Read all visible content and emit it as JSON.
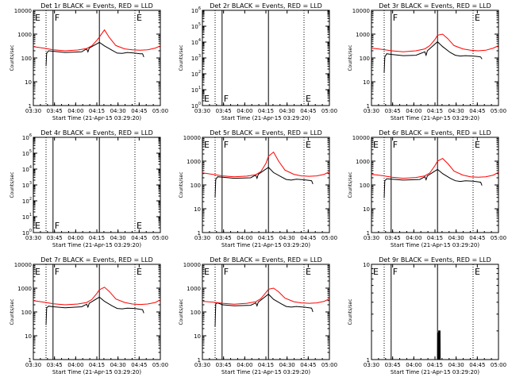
{
  "figure": {
    "xlabel": "Start Time (21-Apr-15 03:29:20)",
    "ylabel": "Counts/sec",
    "x_ticks": [
      "03:30",
      "03:45",
      "04:00",
      "04:15",
      "04:30",
      "04:45",
      "05:00"
    ],
    "colors": {
      "events": "#000000",
      "lld": "#ff0000",
      "axes": "#000000",
      "background": "#ffffff"
    }
  },
  "chart_data": [
    {
      "type": "line",
      "title": "Det 1r BLACK = Events, RED = LLD",
      "yscale": "log",
      "ylim": [
        1,
        10000
      ],
      "y_ticks": [
        "1",
        "10",
        "100",
        "1000",
        "10000"
      ],
      "flags": [
        {
          "label": "E",
          "x": 0.0
        },
        {
          "label": "F",
          "x": 0.155
        },
        {
          "label": "E",
          "x": 0.8
        }
      ],
      "solid_vlines": [
        0.155,
        0.52
      ],
      "dotted_vlines": [
        0.1,
        0.8
      ],
      "series": [
        {
          "color": "#000000",
          "x": [
            0.1,
            0.105,
            0.12,
            0.16,
            0.25,
            0.38,
            0.42,
            0.43,
            0.44,
            0.52,
            0.56,
            0.62,
            0.66,
            0.7,
            0.74,
            0.8,
            0.84,
            0.86,
            0.87
          ],
          "y": [
            45,
            160,
            200,
            190,
            170,
            180,
            240,
            180,
            260,
            450,
            320,
            210,
            160,
            155,
            170,
            160,
            150,
            150,
            110
          ]
        },
        {
          "color": "#ff0000",
          "x": [
            0.0,
            0.08,
            0.16,
            0.25,
            0.35,
            0.42,
            0.46,
            0.5,
            0.52,
            0.56,
            0.6,
            0.65,
            0.72,
            0.78,
            0.84,
            0.9,
            0.96,
            1.0
          ],
          "y": [
            300,
            260,
            220,
            200,
            215,
            250,
            320,
            550,
            750,
            1500,
            700,
            330,
            240,
            220,
            210,
            220,
            260,
            320
          ]
        }
      ]
    },
    {
      "type": "line",
      "title": "Det 2r BLACK = Events, RED = LLD",
      "yscale": "log",
      "ylim": [
        1,
        1000000
      ],
      "y_ticks": [
        "10^0",
        "10^1",
        "10^2",
        "10^3",
        "10^4",
        "10^5",
        "10^6"
      ],
      "flags": [
        {
          "label": "E",
          "x": 0.0
        },
        {
          "label": "F",
          "x": 0.155
        },
        {
          "label": "E",
          "x": 0.8
        }
      ],
      "solid_vlines": [
        0.155,
        0.52
      ],
      "dotted_vlines": [
        0.1,
        0.8
      ],
      "series": []
    },
    {
      "type": "line",
      "title": "Det 3r BLACK = Events, RED = LLD",
      "yscale": "log",
      "ylim": [
        1,
        10000
      ],
      "y_ticks": [
        "1",
        "10",
        "100",
        "1000",
        "10000"
      ],
      "flags": [
        {
          "label": "F",
          "x": 0.155
        },
        {
          "label": "E",
          "x": 0.8
        }
      ],
      "solid_vlines": [
        0.155,
        0.52
      ],
      "dotted_vlines": [
        0.1,
        0.8
      ],
      "series": [
        {
          "color": "#000000",
          "x": [
            0.1,
            0.105,
            0.12,
            0.16,
            0.25,
            0.35,
            0.42,
            0.43,
            0.44,
            0.52,
            0.56,
            0.62,
            0.66,
            0.7,
            0.74,
            0.8,
            0.84,
            0.86,
            0.87
          ],
          "y": [
            25,
            110,
            150,
            140,
            125,
            130,
            180,
            130,
            200,
            480,
            300,
            170,
            130,
            120,
            125,
            120,
            115,
            110,
            90
          ]
        },
        {
          "color": "#ff0000",
          "x": [
            0.0,
            0.08,
            0.16,
            0.25,
            0.35,
            0.42,
            0.46,
            0.5,
            0.52,
            0.56,
            0.6,
            0.65,
            0.72,
            0.78,
            0.84,
            0.9,
            0.96,
            1.0
          ],
          "y": [
            260,
            230,
            200,
            180,
            200,
            240,
            330,
            600,
            900,
            1000,
            650,
            330,
            240,
            210,
            200,
            210,
            260,
            330
          ]
        }
      ]
    },
    {
      "type": "line",
      "title": "Det 4r BLACK = Events, RED = LLD",
      "yscale": "log",
      "ylim": [
        1,
        1000000
      ],
      "y_ticks": [
        "10^0",
        "10^1",
        "10^2",
        "10^3",
        "10^4",
        "10^5",
        "10^6"
      ],
      "flags": [
        {
          "label": "E",
          "x": 0.0
        },
        {
          "label": "F",
          "x": 0.155
        },
        {
          "label": "E",
          "x": 0.8
        }
      ],
      "solid_vlines": [
        0.155,
        0.52
      ],
      "dotted_vlines": [
        0.1,
        0.8
      ],
      "series": []
    },
    {
      "type": "line",
      "title": "Det 5r BLACK = Events, RED = LLD",
      "yscale": "log",
      "ylim": [
        1,
        10000
      ],
      "y_ticks": [
        "1",
        "10",
        "100",
        "1000",
        "10000"
      ],
      "flags": [
        {
          "label": "E",
          "x": 0.0
        },
        {
          "label": "F",
          "x": 0.155
        },
        {
          "label": "E",
          "x": 0.8
        }
      ],
      "solid_vlines": [
        0.155,
        0.52
      ],
      "dotted_vlines": [
        0.1,
        0.8
      ],
      "series": [
        {
          "color": "#000000",
          "x": [
            0.1,
            0.105,
            0.12,
            0.16,
            0.25,
            0.38,
            0.42,
            0.43,
            0.44,
            0.52,
            0.56,
            0.62,
            0.66,
            0.7,
            0.74,
            0.8,
            0.84,
            0.86,
            0.87
          ],
          "y": [
            30,
            170,
            220,
            210,
            190,
            200,
            260,
            190,
            280,
            550,
            330,
            220,
            170,
            160,
            175,
            165,
            155,
            150,
            110
          ]
        },
        {
          "color": "#ff0000",
          "x": [
            0.0,
            0.08,
            0.16,
            0.25,
            0.35,
            0.42,
            0.46,
            0.5,
            0.52,
            0.56,
            0.6,
            0.65,
            0.72,
            0.78,
            0.84,
            0.9,
            0.96,
            1.0
          ],
          "y": [
            320,
            280,
            240,
            220,
            235,
            270,
            360,
            800,
            1600,
            2400,
            1000,
            420,
            280,
            240,
            230,
            240,
            280,
            360
          ]
        }
      ]
    },
    {
      "type": "line",
      "title": "Det 6r BLACK = Events, RED = LLD",
      "yscale": "log",
      "ylim": [
        1,
        10000
      ],
      "y_ticks": [
        "1",
        "10",
        "100",
        "1000",
        "10000"
      ],
      "flags": [
        {
          "label": "E",
          "x": 0.0
        },
        {
          "label": "F",
          "x": 0.155
        },
        {
          "label": "E",
          "x": 0.8
        }
      ],
      "solid_vlines": [
        0.155,
        0.52
      ],
      "dotted_vlines": [
        0.1,
        0.8
      ],
      "series": [
        {
          "color": "#000000",
          "x": [
            0.1,
            0.105,
            0.12,
            0.16,
            0.25,
            0.38,
            0.42,
            0.43,
            0.44,
            0.52,
            0.56,
            0.62,
            0.66,
            0.7,
            0.74,
            0.8,
            0.84,
            0.86,
            0.87
          ],
          "y": [
            28,
            150,
            180,
            175,
            160,
            170,
            220,
            165,
            240,
            450,
            300,
            190,
            150,
            140,
            150,
            145,
            135,
            130,
            95
          ]
        },
        {
          "color": "#ff0000",
          "x": [
            0.0,
            0.08,
            0.16,
            0.25,
            0.35,
            0.42,
            0.46,
            0.5,
            0.52,
            0.56,
            0.6,
            0.65,
            0.72,
            0.78,
            0.84,
            0.9,
            0.96,
            1.0
          ],
          "y": [
            280,
            250,
            210,
            190,
            205,
            240,
            320,
            650,
            1000,
            1300,
            800,
            380,
            260,
            220,
            210,
            220,
            260,
            340
          ]
        }
      ]
    },
    {
      "type": "line",
      "title": "Det 7r BLACK = Events, RED = LLD",
      "yscale": "log",
      "ylim": [
        1,
        10000
      ],
      "y_ticks": [
        "1",
        "10",
        "100",
        "1000",
        "10000"
      ],
      "flags": [
        {
          "label": "E",
          "x": 0.0
        },
        {
          "label": "F",
          "x": 0.155
        },
        {
          "label": "E",
          "x": 0.8
        }
      ],
      "solid_vlines": [
        0.155,
        0.52
      ],
      "dotted_vlines": [
        0.1,
        0.8
      ],
      "series": [
        {
          "color": "#000000",
          "x": [
            0.1,
            0.105,
            0.12,
            0.16,
            0.25,
            0.38,
            0.42,
            0.43,
            0.44,
            0.52,
            0.56,
            0.62,
            0.66,
            0.7,
            0.74,
            0.8,
            0.84,
            0.86,
            0.87
          ],
          "y": [
            28,
            150,
            175,
            165,
            150,
            165,
            210,
            160,
            230,
            420,
            280,
            180,
            140,
            135,
            145,
            140,
            130,
            125,
            90
          ]
        },
        {
          "color": "#ff0000",
          "x": [
            0.0,
            0.08,
            0.16,
            0.25,
            0.35,
            0.42,
            0.46,
            0.5,
            0.52,
            0.56,
            0.6,
            0.65,
            0.72,
            0.78,
            0.84,
            0.9,
            0.96,
            1.0
          ],
          "y": [
            300,
            260,
            220,
            200,
            215,
            250,
            330,
            600,
            850,
            1100,
            700,
            350,
            250,
            215,
            205,
            215,
            250,
            320
          ]
        }
      ]
    },
    {
      "type": "line",
      "title": "Det 8r BLACK = Events, RED = LLD",
      "yscale": "log",
      "ylim": [
        1,
        10000
      ],
      "y_ticks": [
        "1",
        "10",
        "100",
        "1000",
        "10000"
      ],
      "flags": [
        {
          "label": "E",
          "x": 0.0
        },
        {
          "label": "F",
          "x": 0.155
        },
        {
          "label": "E",
          "x": 0.8
        }
      ],
      "solid_vlines": [
        0.155,
        0.52
      ],
      "dotted_vlines": [
        0.1,
        0.8
      ],
      "series": [
        {
          "color": "#000000",
          "x": [
            0.1,
            0.105,
            0.12,
            0.16,
            0.25,
            0.38,
            0.42,
            0.43,
            0.44,
            0.52,
            0.56,
            0.62,
            0.66,
            0.7,
            0.74,
            0.8,
            0.84,
            0.86,
            0.87
          ],
          "y": [
            25,
            220,
            240,
            200,
            180,
            190,
            240,
            180,
            260,
            560,
            340,
            220,
            170,
            160,
            170,
            160,
            150,
            145,
            100
          ]
        },
        {
          "color": "#ff0000",
          "x": [
            0.0,
            0.08,
            0.16,
            0.25,
            0.35,
            0.42,
            0.46,
            0.5,
            0.52,
            0.56,
            0.6,
            0.65,
            0.72,
            0.78,
            0.84,
            0.9,
            0.96,
            1.0
          ],
          "y": [
            280,
            260,
            230,
            210,
            230,
            270,
            360,
            650,
            900,
            1000,
            700,
            380,
            270,
            240,
            230,
            240,
            280,
            360
          ]
        }
      ]
    },
    {
      "type": "line",
      "title": "Det 9r BLACK = Events, RED = LLD",
      "yscale": "log",
      "ylim": [
        1,
        10
      ],
      "y_ticks": [
        "1",
        "10"
      ],
      "flags": [
        {
          "label": "E",
          "x": 0.0
        },
        {
          "label": "F",
          "x": 0.155
        },
        {
          "label": "E",
          "x": 0.8
        }
      ],
      "solid_vlines": [
        0.155,
        0.52
      ],
      "dotted_vlines": [
        0.1,
        0.8
      ],
      "series": [
        {
          "color": "#000000",
          "x": [
            0.52,
            0.521,
            0.524,
            0.525,
            0.528,
            0.529,
            0.532,
            0.533,
            0.536,
            0.537,
            0.54,
            0.541
          ],
          "y": [
            1,
            1.9,
            1.9,
            1,
            1,
            2,
            2,
            1,
            1,
            2,
            2,
            1
          ]
        }
      ]
    }
  ]
}
